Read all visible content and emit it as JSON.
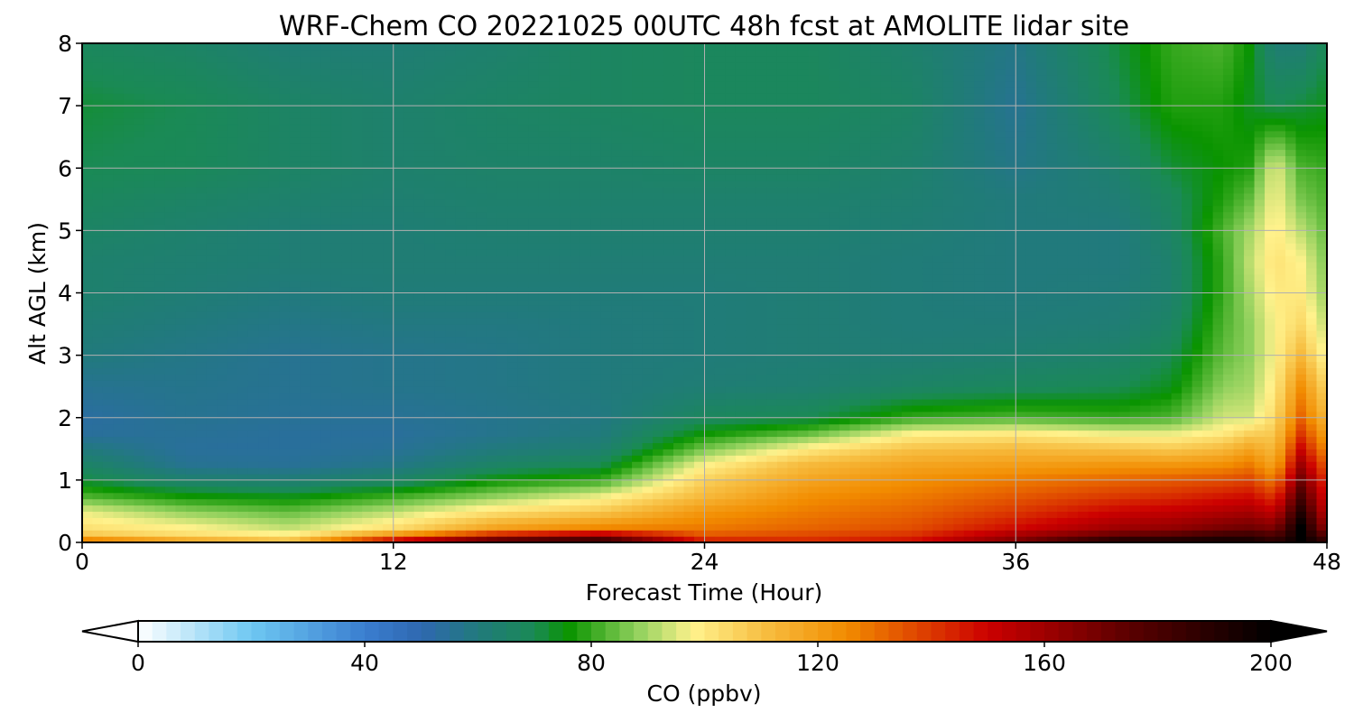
{
  "chart_data": {
    "type": "heatmap",
    "title": "WRF-Chem CO  20221025 00UTC 48h fcst at AMOLITE lidar site",
    "xlabel": "Forecast Time (Hour)",
    "ylabel": "Alt AGL (km)",
    "xlim": [
      0,
      48
    ],
    "ylim": [
      0,
      8
    ],
    "xticks": [
      0,
      12,
      24,
      36,
      48
    ],
    "yticks": [
      0,
      1,
      2,
      3,
      4,
      5,
      6,
      7,
      8
    ],
    "grid": true,
    "colorbar": {
      "label": "CO  (ppbv)",
      "min": 0,
      "max": 200,
      "ticks": [
        0,
        40,
        80,
        120,
        160,
        200
      ],
      "extend": "both",
      "colors": [
        {
          "value": 0,
          "color": "#ffffff"
        },
        {
          "value": 20,
          "color": "#6ec8f2"
        },
        {
          "value": 40,
          "color": "#3a7ed0"
        },
        {
          "value": 50,
          "color": "#2f68b0"
        },
        {
          "value": 60,
          "color": "#217a7c"
        },
        {
          "value": 70,
          "color": "#1a8a55"
        },
        {
          "value": 76,
          "color": "#0a9400"
        },
        {
          "value": 88,
          "color": "#8fd05c"
        },
        {
          "value": 98,
          "color": "#fff28c"
        },
        {
          "value": 110,
          "color": "#f7c044"
        },
        {
          "value": 125,
          "color": "#f28c00"
        },
        {
          "value": 150,
          "color": "#cc0000"
        },
        {
          "value": 175,
          "color": "#5a0000"
        },
        {
          "value": 200,
          "color": "#000000"
        }
      ]
    },
    "z_profile_hours": [
      0,
      4,
      8,
      12,
      16,
      20,
      24,
      28,
      32,
      36,
      40,
      42,
      44,
      45,
      46,
      47,
      48
    ],
    "z_levels_km": [
      0,
      0.1,
      0.25,
      0.5,
      0.75,
      1,
      1.25,
      1.5,
      1.75,
      2,
      2.5,
      3,
      3.5,
      4,
      4.5,
      5,
      5.5,
      6,
      7,
      8
    ],
    "z_ppbv": [
      [
        140,
        110,
        102,
        96,
        82,
        72,
        66,
        60,
        54,
        53,
        56,
        60,
        62,
        64,
        64,
        66,
        68,
        70,
        72,
        68
      ],
      [
        125,
        104,
        98,
        88,
        76,
        64,
        56,
        54,
        55,
        56,
        57,
        58,
        60,
        62,
        63,
        64,
        66,
        69,
        70,
        66
      ],
      [
        115,
        100,
        92,
        84,
        74,
        62,
        55,
        54,
        54,
        55,
        56,
        56,
        58,
        60,
        62,
        62,
        64,
        66,
        66,
        62
      ],
      [
        165,
        125,
        102,
        92,
        80,
        66,
        58,
        55,
        54,
        55,
        57,
        57,
        59,
        61,
        62,
        62,
        63,
        64,
        64,
        62
      ],
      [
        190,
        150,
        118,
        102,
        88,
        76,
        66,
        60,
        57,
        57,
        58,
        58,
        59,
        61,
        62,
        63,
        64,
        65,
        66,
        64
      ],
      [
        198,
        162,
        125,
        108,
        96,
        80,
        70,
        63,
        60,
        59,
        60,
        60,
        60,
        61,
        62,
        63,
        64,
        65,
        67,
        67
      ],
      [
        150,
        135,
        128,
        122,
        112,
        106,
        98,
        86,
        76,
        68,
        62,
        61,
        61,
        61,
        62,
        63,
        64,
        66,
        68,
        68
      ],
      [
        145,
        138,
        132,
        128,
        124,
        118,
        112,
        100,
        84,
        70,
        63,
        62,
        62,
        62,
        62,
        63,
        64,
        66,
        68,
        68
      ],
      [
        150,
        142,
        136,
        132,
        128,
        124,
        118,
        110,
        98,
        80,
        66,
        62,
        61,
        61,
        61,
        62,
        63,
        64,
        66,
        64
      ],
      [
        170,
        160,
        148,
        140,
        134,
        128,
        120,
        112,
        100,
        82,
        68,
        63,
        61,
        60,
        60,
        60,
        60,
        58,
        56,
        58
      ],
      [
        200,
        175,
        160,
        150,
        140,
        132,
        122,
        110,
        96,
        80,
        70,
        65,
        62,
        61,
        60,
        60,
        62,
        64,
        70,
        72
      ],
      [
        200,
        178,
        162,
        152,
        142,
        134,
        122,
        108,
        96,
        82,
        74,
        70,
        66,
        64,
        64,
        66,
        68,
        72,
        78,
        80
      ],
      [
        200,
        185,
        168,
        156,
        146,
        136,
        124,
        112,
        100,
        94,
        88,
        84,
        82,
        80,
        80,
        82,
        78,
        76,
        78,
        82
      ],
      [
        198,
        186,
        170,
        158,
        148,
        138,
        128,
        118,
        106,
        94,
        90,
        88,
        88,
        90,
        92,
        90,
        84,
        78,
        74,
        76
      ],
      [
        190,
        180,
        166,
        152,
        140,
        128,
        118,
        112,
        108,
        104,
        100,
        98,
        98,
        100,
        102,
        100,
        98,
        96,
        70,
        62
      ],
      [
        200,
        200,
        200,
        190,
        180,
        170,
        160,
        150,
        140,
        132,
        124,
        112,
        104,
        100,
        98,
        92,
        86,
        82,
        72,
        62
      ],
      [
        190,
        175,
        160,
        150,
        145,
        140,
        132,
        124,
        118,
        112,
        104,
        96,
        92,
        88,
        86,
        84,
        82,
        80,
        74,
        70
      ]
    ]
  }
}
